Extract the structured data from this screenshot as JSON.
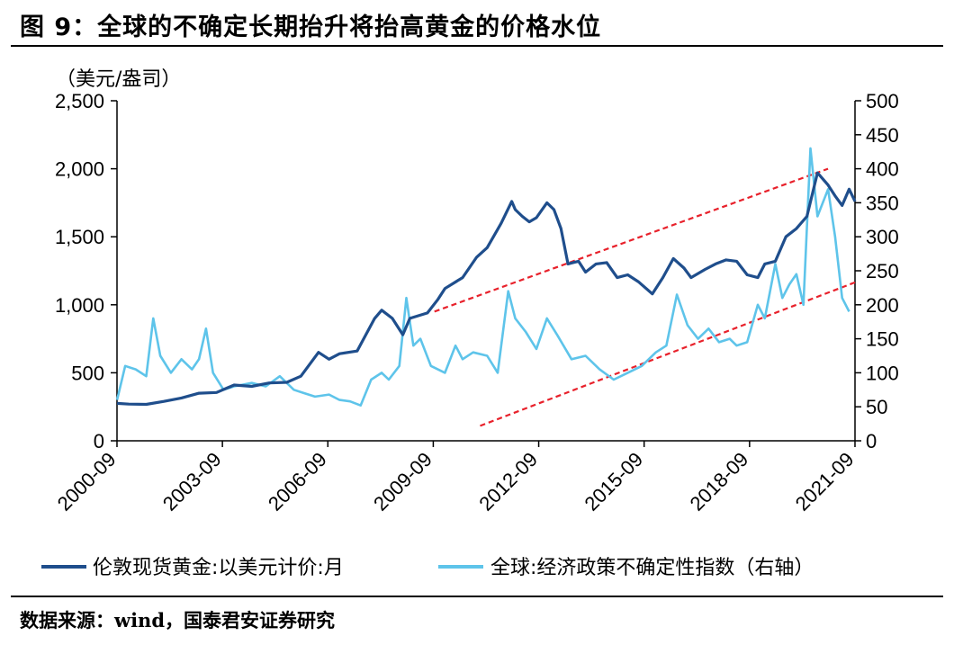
{
  "title": "图 9：全球的不确定长期抬升将抬高黄金的价格水位",
  "source": "数据来源：wind，国泰君安证券研究",
  "chart_data": {
    "type": "line",
    "unit_label": "（美元/盎司）",
    "x_categories": [
      "2000-09",
      "2003-09",
      "2006-09",
      "2009-09",
      "2012-09",
      "2015-09",
      "2018-09",
      "2021-09"
    ],
    "x_range": [
      2000.667,
      2021.667
    ],
    "y_left": {
      "lim": [
        0,
        2500
      ],
      "ticks": [
        "0",
        "500",
        "1,000",
        "1,500",
        "2,000",
        "2,500"
      ]
    },
    "y_right": {
      "lim": [
        0,
        500
      ],
      "ticks": [
        "0",
        "50",
        "100",
        "150",
        "200",
        "250",
        "300",
        "350",
        "400",
        "450",
        "500"
      ]
    },
    "series": [
      {
        "name": "伦敦现货黄金:以美元计价:月",
        "axis": "left",
        "color": "#1f4e8c",
        "points": [
          [
            2000.67,
            275
          ],
          [
            2001.0,
            270
          ],
          [
            2001.5,
            268
          ],
          [
            2002.0,
            290
          ],
          [
            2002.5,
            315
          ],
          [
            2003.0,
            350
          ],
          [
            2003.5,
            355
          ],
          [
            2004.0,
            410
          ],
          [
            2004.5,
            400
          ],
          [
            2005.0,
            425
          ],
          [
            2005.5,
            430
          ],
          [
            2005.9,
            475
          ],
          [
            2006.4,
            650
          ],
          [
            2006.7,
            600
          ],
          [
            2007.0,
            640
          ],
          [
            2007.5,
            660
          ],
          [
            2008.0,
            900
          ],
          [
            2008.2,
            960
          ],
          [
            2008.5,
            900
          ],
          [
            2008.8,
            780
          ],
          [
            2009.0,
            900
          ],
          [
            2009.5,
            940
          ],
          [
            2009.8,
            1040
          ],
          [
            2010.0,
            1120
          ],
          [
            2010.5,
            1200
          ],
          [
            2010.9,
            1350
          ],
          [
            2011.2,
            1420
          ],
          [
            2011.6,
            1600
          ],
          [
            2011.9,
            1760
          ],
          [
            2012.0,
            1700
          ],
          [
            2012.2,
            1650
          ],
          [
            2012.4,
            1610
          ],
          [
            2012.6,
            1640
          ],
          [
            2012.9,
            1750
          ],
          [
            2013.1,
            1700
          ],
          [
            2013.3,
            1560
          ],
          [
            2013.5,
            1300
          ],
          [
            2013.8,
            1320
          ],
          [
            2014.0,
            1240
          ],
          [
            2014.3,
            1300
          ],
          [
            2014.6,
            1310
          ],
          [
            2014.9,
            1200
          ],
          [
            2015.2,
            1220
          ],
          [
            2015.5,
            1170
          ],
          [
            2015.9,
            1080
          ],
          [
            2016.2,
            1200
          ],
          [
            2016.5,
            1340
          ],
          [
            2016.8,
            1270
          ],
          [
            2017.0,
            1200
          ],
          [
            2017.4,
            1260
          ],
          [
            2017.7,
            1300
          ],
          [
            2018.0,
            1330
          ],
          [
            2018.3,
            1320
          ],
          [
            2018.6,
            1220
          ],
          [
            2018.9,
            1200
          ],
          [
            2019.1,
            1300
          ],
          [
            2019.4,
            1320
          ],
          [
            2019.7,
            1500
          ],
          [
            2020.0,
            1560
          ],
          [
            2020.3,
            1650
          ],
          [
            2020.6,
            1970
          ],
          [
            2020.9,
            1880
          ],
          [
            2021.1,
            1800
          ],
          [
            2021.3,
            1730
          ],
          [
            2021.5,
            1850
          ],
          [
            2021.67,
            1760
          ]
        ]
      },
      {
        "name": "全球:经济政策不确定性指数（右轴）",
        "axis": "right",
        "color": "#5ec4ea",
        "points": [
          [
            2000.67,
            60
          ],
          [
            2000.9,
            110
          ],
          [
            2001.2,
            105
          ],
          [
            2001.5,
            95
          ],
          [
            2001.7,
            180
          ],
          [
            2001.9,
            125
          ],
          [
            2002.2,
            100
          ],
          [
            2002.5,
            120
          ],
          [
            2002.8,
            105
          ],
          [
            2003.0,
            120
          ],
          [
            2003.2,
            165
          ],
          [
            2003.4,
            100
          ],
          [
            2003.7,
            75
          ],
          [
            2004.0,
            80
          ],
          [
            2004.5,
            85
          ],
          [
            2004.9,
            80
          ],
          [
            2005.3,
            95
          ],
          [
            2005.7,
            75
          ],
          [
            2006.0,
            70
          ],
          [
            2006.3,
            65
          ],
          [
            2006.7,
            68
          ],
          [
            2007.0,
            60
          ],
          [
            2007.3,
            58
          ],
          [
            2007.6,
            52
          ],
          [
            2007.9,
            90
          ],
          [
            2008.2,
            100
          ],
          [
            2008.4,
            90
          ],
          [
            2008.7,
            110
          ],
          [
            2008.9,
            210
          ],
          [
            2009.1,
            140
          ],
          [
            2009.3,
            150
          ],
          [
            2009.6,
            110
          ],
          [
            2010.0,
            100
          ],
          [
            2010.3,
            140
          ],
          [
            2010.5,
            120
          ],
          [
            2010.8,
            130
          ],
          [
            2011.2,
            125
          ],
          [
            2011.5,
            100
          ],
          [
            2011.8,
            220
          ],
          [
            2012.0,
            180
          ],
          [
            2012.3,
            160
          ],
          [
            2012.6,
            135
          ],
          [
            2012.9,
            180
          ],
          [
            2013.2,
            155
          ],
          [
            2013.6,
            120
          ],
          [
            2014.0,
            125
          ],
          [
            2014.4,
            105
          ],
          [
            2014.8,
            90
          ],
          [
            2015.2,
            100
          ],
          [
            2015.6,
            110
          ],
          [
            2016.0,
            130
          ],
          [
            2016.3,
            140
          ],
          [
            2016.6,
            215
          ],
          [
            2016.9,
            170
          ],
          [
            2017.2,
            150
          ],
          [
            2017.5,
            165
          ],
          [
            2017.8,
            145
          ],
          [
            2018.1,
            150
          ],
          [
            2018.3,
            140
          ],
          [
            2018.6,
            145
          ],
          [
            2018.9,
            200
          ],
          [
            2019.1,
            180
          ],
          [
            2019.4,
            260
          ],
          [
            2019.6,
            210
          ],
          [
            2019.8,
            230
          ],
          [
            2020.0,
            245
          ],
          [
            2020.2,
            200
          ],
          [
            2020.4,
            430
          ],
          [
            2020.6,
            330
          ],
          [
            2020.9,
            370
          ],
          [
            2021.1,
            300
          ],
          [
            2021.3,
            210
          ],
          [
            2021.5,
            190
          ]
        ]
      }
    ],
    "annotations": [
      {
        "type": "trend-line",
        "style": "dashed",
        "color": "#e8212b",
        "from": [
          2009.7,
          190
        ],
        "to": [
          2020.9,
          400
        ]
      },
      {
        "type": "trend-line",
        "style": "dashed",
        "color": "#e8212b",
        "from": [
          2011.0,
          22
        ],
        "to": [
          2021.67,
          233
        ]
      }
    ],
    "legend": "bottom"
  }
}
